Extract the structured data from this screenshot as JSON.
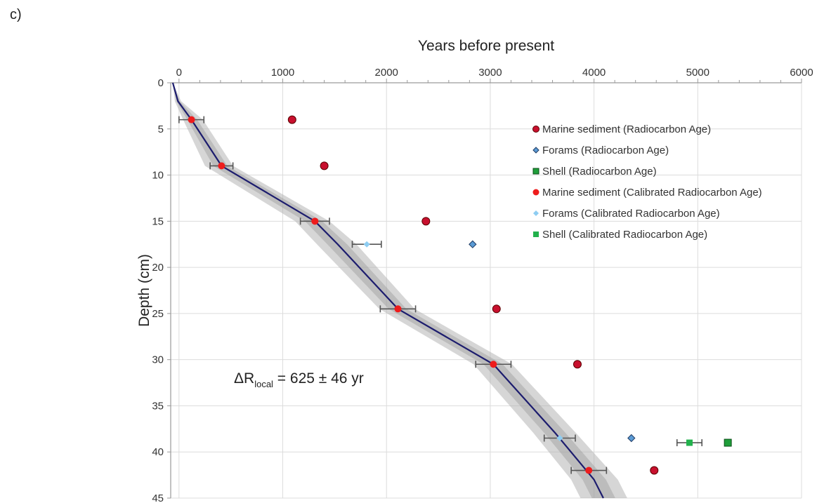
{
  "panel_label": "c)",
  "chart_data": {
    "type": "scatter",
    "xlabel": "Years before present",
    "ylabel": "Depth (cm)",
    "xlim": [
      -80,
      6000
    ],
    "ylim": [
      0,
      45
    ],
    "x_axis_position": "top",
    "y_inverted": true,
    "grid": true,
    "x_ticks": [
      0,
      1000,
      2000,
      3000,
      4000,
      5000,
      6000
    ],
    "y_ticks": [
      0,
      5,
      10,
      15,
      20,
      25,
      30,
      35,
      40,
      45
    ],
    "legend_position": "top-right",
    "annotation": {
      "prefix": "ΔR",
      "subscript": "local",
      "suffix": " = 625 ± 46 yr"
    },
    "series": [
      {
        "name": "Marine sediment (Radiocarbon Age)",
        "marker": "circle",
        "color": "#c8102e",
        "edge": "#5a0000",
        "points": [
          {
            "x": 1090,
            "y": 4
          },
          {
            "x": 1400,
            "y": 9
          },
          {
            "x": 2380,
            "y": 15
          },
          {
            "x": 3060,
            "y": 24.5
          },
          {
            "x": 3840,
            "y": 30.5
          },
          {
            "x": 4580,
            "y": 42
          }
        ]
      },
      {
        "name": "Forams (Radiocarbon Age)",
        "marker": "diamond",
        "color": "#5b9bd5",
        "edge": "#1f3b63",
        "points": [
          {
            "x": 2830,
            "y": 17.5
          },
          {
            "x": 4360,
            "y": 38.5
          }
        ]
      },
      {
        "name": "Shell (Radiocarbon Age)",
        "marker": "square",
        "color": "#1f9e3a",
        "edge": "#0b4d18",
        "points": [
          {
            "x": 5290,
            "y": 39
          }
        ]
      },
      {
        "name": "Marine sediment (Calibrated Radiocarbon Age)",
        "marker": "circle-small",
        "color": "#ee1c1c",
        "points": [
          {
            "x": 120,
            "y": 4,
            "err": 120
          },
          {
            "x": 410,
            "y": 9,
            "err": 110
          },
          {
            "x": 1310,
            "y": 15,
            "err": 140
          },
          {
            "x": 2110,
            "y": 24.5,
            "err": 170
          },
          {
            "x": 3030,
            "y": 30.5,
            "err": 170
          },
          {
            "x": 3950,
            "y": 42,
            "err": 170
          }
        ]
      },
      {
        "name": "Forams (Calibrated Radiocarbon Age)",
        "marker": "diamond-small",
        "color": "#8ecdf2",
        "points": [
          {
            "x": 1810,
            "y": 17.5,
            "err": 140
          },
          {
            "x": 3670,
            "y": 38.5,
            "err": 150
          }
        ]
      },
      {
        "name": "Shell (Calibrated Radiocarbon Age)",
        "marker": "square-small",
        "color": "#22b14c",
        "points": [
          {
            "x": 4920,
            "y": 39,
            "err": 120
          }
        ]
      }
    ],
    "age_model": {
      "line_color": "#1c1c6e",
      "band_color": "#b4b4b4",
      "points": [
        {
          "x": -60,
          "y": 0,
          "lo": -60,
          "hi": -60
        },
        {
          "x": -10,
          "y": 2,
          "lo": -40,
          "hi": 20
        },
        {
          "x": 120,
          "y": 4,
          "lo": 40,
          "hi": 230
        },
        {
          "x": 410,
          "y": 9,
          "lo": 250,
          "hi": 520
        },
        {
          "x": 1310,
          "y": 15,
          "lo": 1120,
          "hi": 1450
        },
        {
          "x": 1530,
          "y": 17.5,
          "lo": 1330,
          "hi": 1710
        },
        {
          "x": 2110,
          "y": 24.5,
          "lo": 1930,
          "hi": 2270
        },
        {
          "x": 3030,
          "y": 30.5,
          "lo": 2840,
          "hi": 3210
        },
        {
          "x": 3630,
          "y": 38,
          "lo": 3420,
          "hi": 3830
        },
        {
          "x": 4000,
          "y": 43,
          "lo": 3780,
          "hi": 4230
        },
        {
          "x": 4090,
          "y": 45,
          "lo": 3870,
          "hi": 4320
        }
      ]
    }
  }
}
